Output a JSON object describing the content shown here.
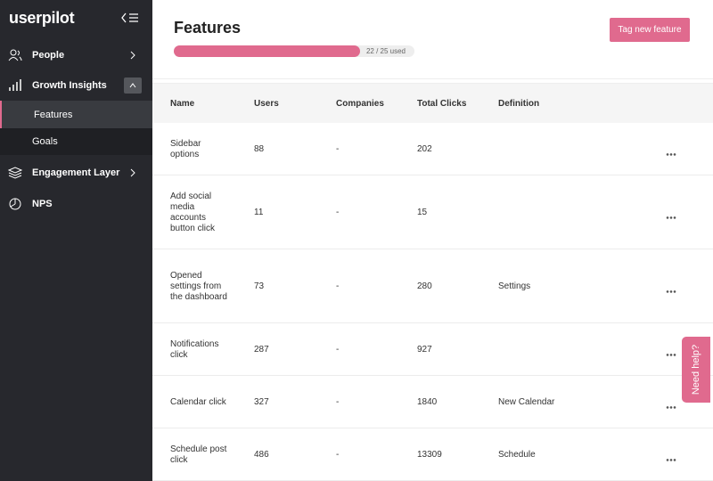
{
  "sidebar": {
    "logo": "userpilot",
    "items": [
      "People",
      "Growth Insights",
      "Features",
      "Goals",
      "Engagement Layer",
      "NPS"
    ]
  },
  "header": {
    "title": "Features",
    "progress": {
      "used": 22,
      "limit": 25,
      "label": "22 / 25 used"
    },
    "button": "Tag new feature"
  },
  "table": {
    "columns": [
      "Name",
      "Users",
      "Companies",
      "Total Clicks",
      "Definition"
    ],
    "rows": [
      [
        "Sidebar options",
        88,
        "-",
        202,
        null
      ],
      [
        "Add social media accounts button click",
        11,
        "-",
        15,
        null
      ],
      [
        "Opened settings from the dashboard",
        73,
        "-",
        280,
        "Settings"
      ],
      [
        "Notifications click",
        287,
        "-",
        927,
        null
      ],
      [
        "Calendar click",
        327,
        "-",
        1840,
        "New Calendar"
      ],
      [
        "Schedule post click",
        486,
        "-",
        13309,
        "Schedule"
      ]
    ]
  },
  "help": "Need help?"
}
